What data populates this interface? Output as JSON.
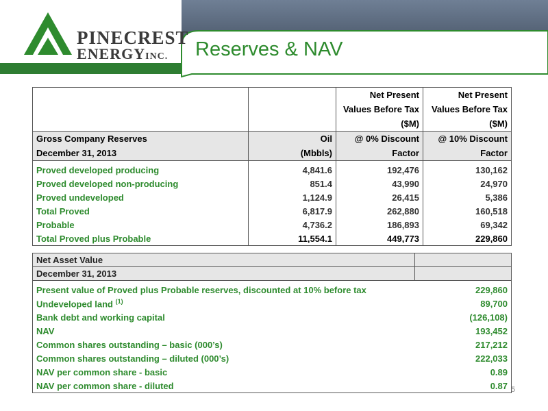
{
  "header": {
    "logo_name": "PINECREST",
    "logo_sub": "ENERGY",
    "logo_suffix": "INC.",
    "title": "Reserves & NAV"
  },
  "reserves_table": {
    "header_rows": [
      [
        [],
        [],
        [
          "Net Present",
          "Values Before Tax",
          "($M)"
        ],
        [
          "Net Present",
          "Values Before Tax",
          "($M)"
        ]
      ],
      [
        [
          "Gross Company Reserves",
          "December 31, 2013"
        ],
        [
          "Oil",
          "(Mbbls)"
        ],
        [
          "@ 0% Discount",
          "Factor"
        ],
        [
          "@ 10% Discount",
          "Factor"
        ]
      ]
    ],
    "rows": [
      [
        "Proved developed producing",
        "4,841.6",
        "192,476",
        "130,162"
      ],
      [
        "Proved developed non-producing",
        "851.4",
        "43,990",
        "24,970"
      ],
      [
        "Proved undeveloped",
        "1,124.9",
        "26,415",
        "5,386"
      ],
      [
        "Total Proved",
        "6,817.9",
        "262,880",
        "160,518"
      ],
      [
        "Probable",
        "4,736.2",
        "186,893",
        "69,342"
      ],
      [
        "Total Proved plus Probable",
        "11,554.1",
        "449,773",
        "229,860"
      ]
    ]
  },
  "nav_table": {
    "header_rows": [
      "Net Asset Value",
      "December 31, 2013"
    ],
    "rows": [
      {
        "label": "Present value of Proved plus Probable reserves, discounted at 10% before tax",
        "value": "229,860"
      },
      {
        "label": "Undeveloped land",
        "note": "(1)",
        "value": "89,700"
      },
      {
        "label": "Bank debt and working capital",
        "value": "(126,108)"
      },
      {
        "label": "NAV",
        "value": "193,452"
      },
      {
        "label": "Common shares outstanding – basic (000’s)",
        "value": "217,212"
      },
      {
        "label": "Common shares outstanding – diluted (000’s)",
        "value": "222,033"
      },
      {
        "label": "NAV per common share - basic",
        "value": "0.89"
      },
      {
        "label": "NAV per common share - diluted",
        "value": "0.87"
      }
    ]
  },
  "page_number": "5"
}
